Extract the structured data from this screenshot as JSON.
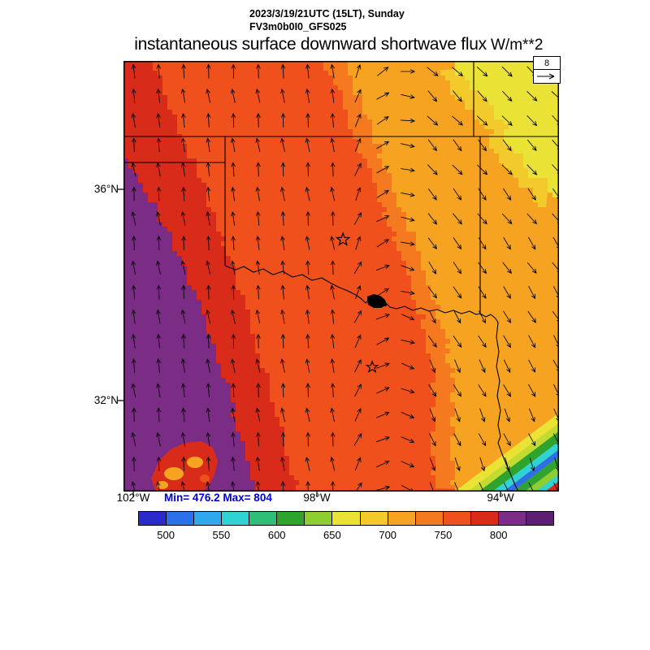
{
  "header": {
    "line1": "2023/3/19/21UTC (15LT), Sunday",
    "line2": "FV3m0b0I0_GFS025"
  },
  "title": {
    "text": "instantaneous surface downward shortwave flux",
    "units": "W/m**2"
  },
  "map": {
    "lat_labels": [
      "36°N",
      "32°N"
    ],
    "lon_labels": [
      "102°W",
      "98°W",
      "94°W"
    ],
    "stats_text": "Min= 476.2 Max= 804",
    "stats_color": "#0000CC",
    "vector_legend_value": "8"
  },
  "colorbar": {
    "tick_labels": [
      "500",
      "550",
      "600",
      "650",
      "700",
      "750",
      "800"
    ],
    "colors": [
      "#2A2ACD",
      "#2C6FE8",
      "#2FA9EE",
      "#2FD3D3",
      "#2EBF77",
      "#2EA32E",
      "#8FCE30",
      "#EAE335",
      "#F2CA2B",
      "#F7A322",
      "#F5791F",
      "#F0511C",
      "#D92B1A",
      "#7B2D86",
      "#5E1F70"
    ]
  },
  "chart_data": {
    "type": "heatmap",
    "title": "instantaneous surface downward shortwave flux",
    "units": "W/m**2",
    "valid_time": "2023/3/19/21UTC (15LT), Sunday",
    "model": "FV3m0b0I0_GFS025",
    "min": 476.2,
    "max": 804,
    "colorbar_levels": [
      500,
      550,
      600,
      650,
      700,
      750,
      800
    ],
    "lat_ticks": [
      "36°N",
      "32°N"
    ],
    "lon_ticks": [
      "102°W",
      "98°W",
      "94°W"
    ],
    "wind_reference": 8,
    "field_colors": {
      "yellow": "#EAE335",
      "gold": "#F2CA2B",
      "orange": "#F7A322",
      "dark_orange": "#F5791F",
      "red_orange": "#F0511C",
      "red": "#D92B1A",
      "purple": "#7B2D86"
    },
    "field_regions": [
      {
        "range": "650-700",
        "area": "northeast corner (yellow)"
      },
      {
        "range": "700-750",
        "area": "broad northeast band (orange)"
      },
      {
        "range": "750-775",
        "area": "large central region (red-orange)"
      },
      {
        "range": "775-800",
        "area": "western band (red)"
      },
      {
        "range": ">800",
        "area": "southwest region (purple)"
      },
      {
        "range": "500-650",
        "area": "cloud streaks in southeast corner (blue/cyan/green/yellow)"
      }
    ],
    "markers": [
      {
        "shape": "star",
        "x": 0.504,
        "y": 0.415,
        "r": 8
      },
      {
        "shape": "star",
        "x": 0.571,
        "y": 0.711,
        "r": 7
      }
    ],
    "wind_pattern": "southerly flow (arrows pointing up, slight left tilt) over west and center, veering to northwesterly (arrows pointing down-right) over the east"
  }
}
